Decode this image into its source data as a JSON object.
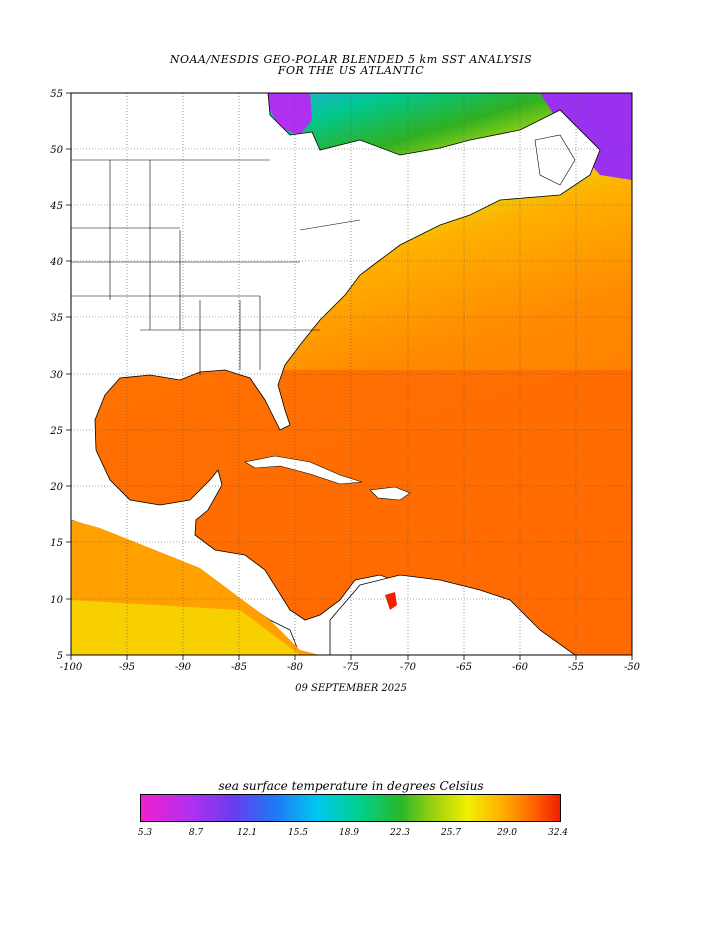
{
  "title_line1": "NOAA/NESDIS GEO-POLAR BLENDED 5 km SST ANALYSIS",
  "title_line2": "FOR THE US ATLANTIC",
  "date": "09 SEPTEMBER 2025",
  "colorbar": {
    "title": "sea surface temperature in degrees Celsius",
    "ticks": [
      "5.3",
      "8.7",
      "12.1",
      "15.5",
      "18.9",
      "22.3",
      "25.7",
      "29.0",
      "32.4"
    ]
  },
  "axes": {
    "lon_ticks": [
      "-100",
      "-95",
      "-90",
      "-85",
      "-80",
      "-75",
      "-70",
      "-65",
      "-60",
      "-55",
      "-50"
    ],
    "lat_ticks": [
      "55",
      "50",
      "45",
      "40",
      "35",
      "30",
      "25",
      "20",
      "15",
      "10",
      "5"
    ]
  },
  "colors": {
    "land": "#ffffff",
    "warm_sst": "#ff6a00",
    "cold_sst": "#b030f0",
    "grid": "#555555"
  }
}
